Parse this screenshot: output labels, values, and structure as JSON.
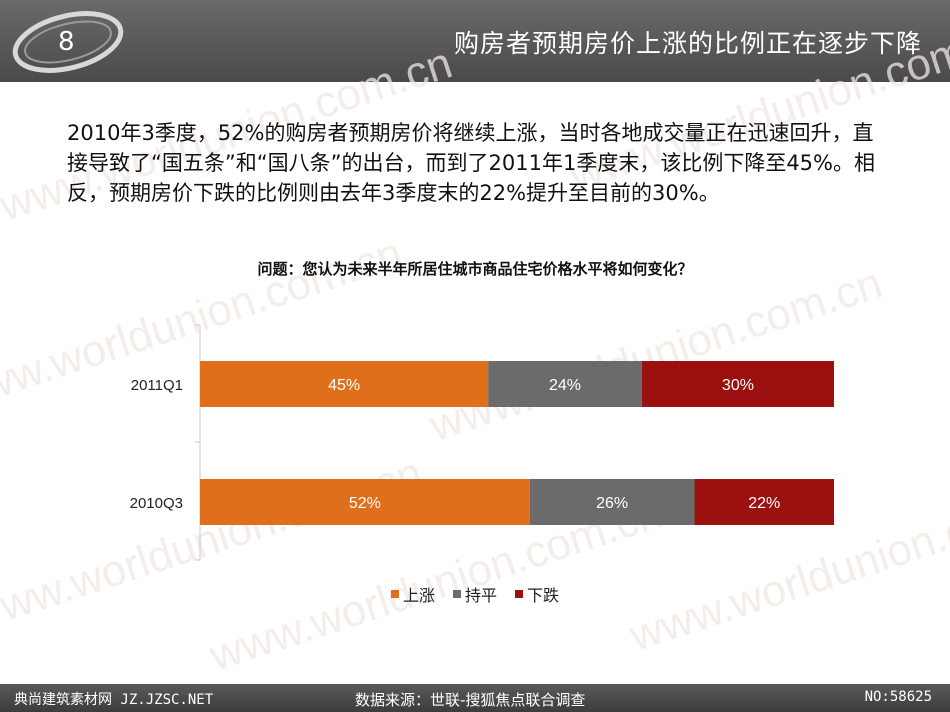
{
  "header": {
    "title": "购房者预期房价上涨的比例正在逐步下降"
  },
  "watermark": "www.worldunion.com.cn",
  "intro": "2010年3季度，52%的购房者预期房价将继续上涨，当时各地成交量正在迅速回升，直接导致了“国五条”和“国八条”的出台，而到了2011年1季度末，该比例下降至45%。相反，预期房价下跌的比例则由去年3季度末的22%提升至目前的30%。",
  "chart_question": "问题：您认为未来半年所居住城市商品住宅价格水平将如何变化？",
  "chart_data": {
    "type": "bar",
    "orientation": "horizontal",
    "stacked": true,
    "categories": [
      "2011Q1",
      "2010Q3"
    ],
    "series": [
      {
        "name": "上涨",
        "values": [
          45,
          52
        ],
        "labels": [
          "45%",
          "52%"
        ],
        "color": "#e06f1c"
      },
      {
        "name": "持平",
        "values": [
          24,
          26
        ],
        "labels": [
          "24%",
          "26%"
        ],
        "color": "#6b6b6b"
      },
      {
        "name": "下跌",
        "values": [
          30,
          22
        ],
        "labels": [
          "30%",
          "22%"
        ],
        "color": "#9c1010"
      }
    ],
    "legend_position": "bottom",
    "grid": false
  },
  "footer": {
    "left": "典尚建筑素材网 JZ.JZSC.NET",
    "source": "数据来源：世联-搜狐焦点联合调查",
    "right": "NO:58625"
  }
}
